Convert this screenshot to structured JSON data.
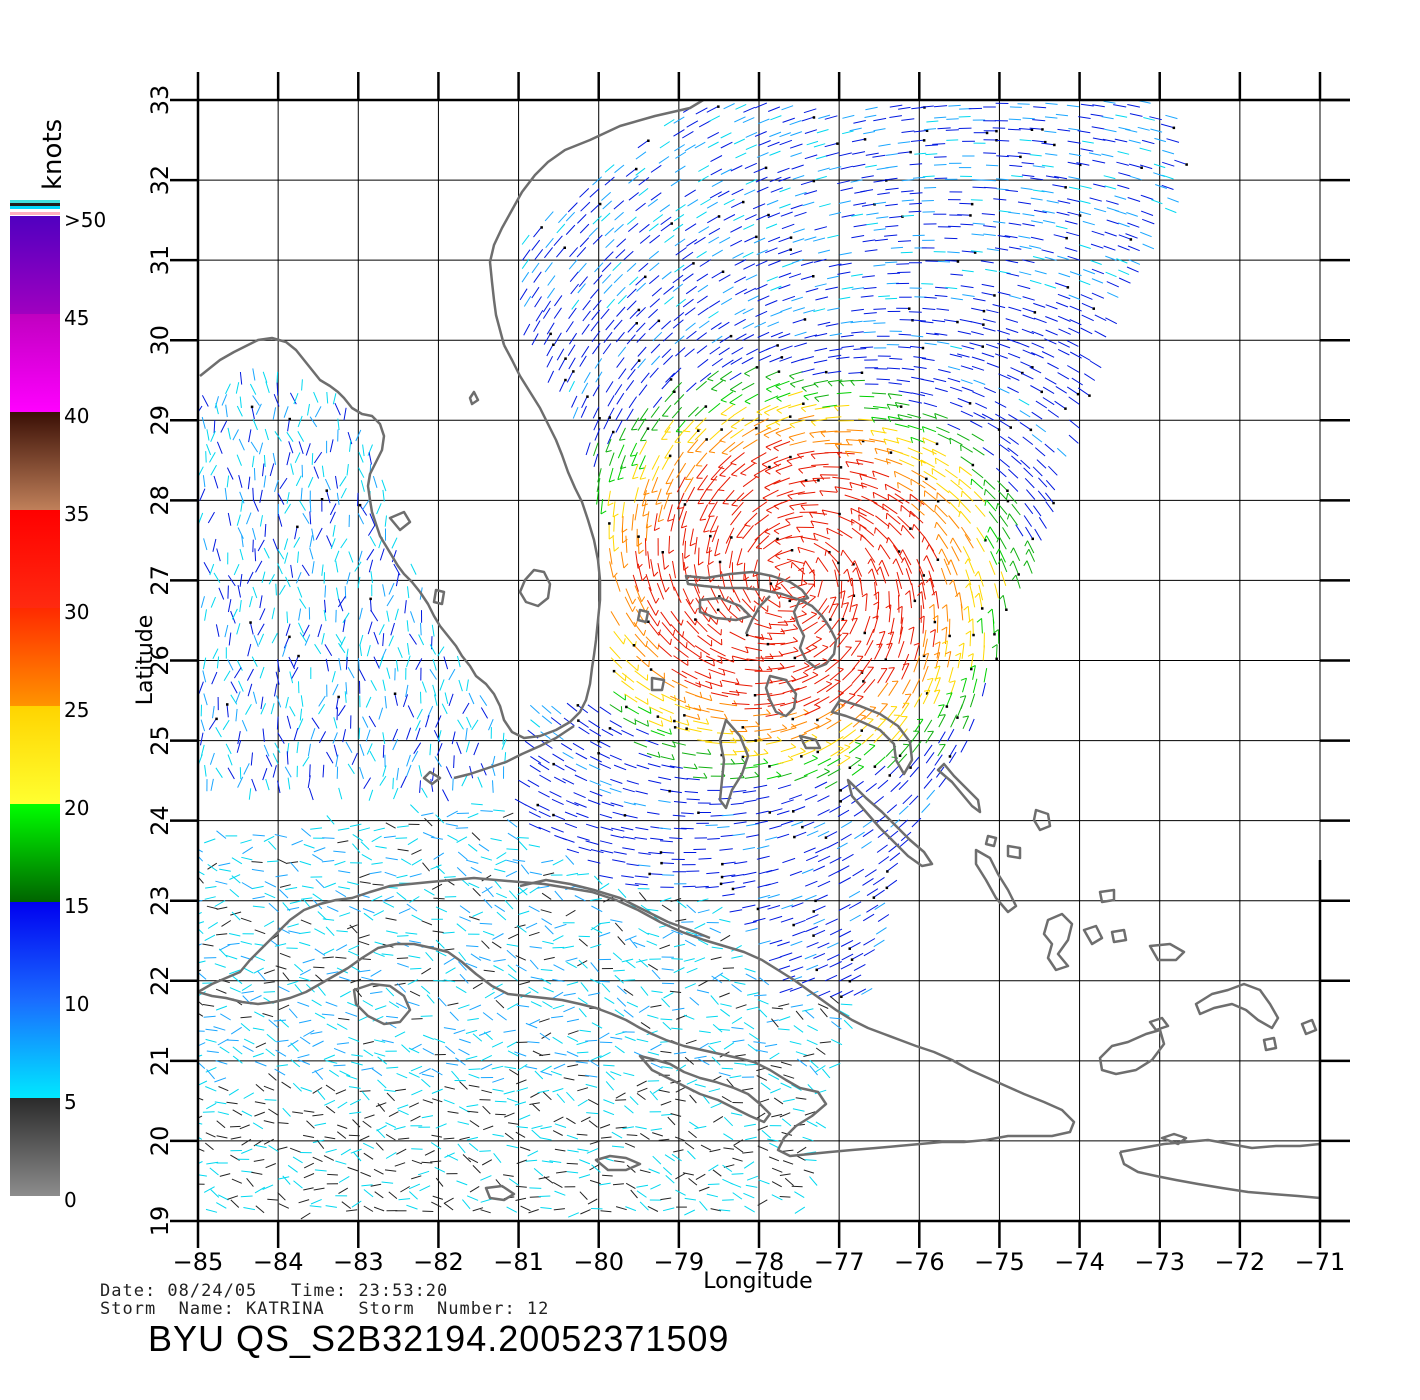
{
  "legend": {
    "unit": "knots",
    "labels": [
      "0",
      "5",
      "10",
      "15",
      "20",
      "25",
      "30",
      "35",
      "40",
      "45",
      ">50"
    ],
    "bands": [
      {
        "from": 0,
        "to": 5,
        "top": "#2a2a2a",
        "bottom": "#8c8c8c"
      },
      {
        "from": 5,
        "to": 10,
        "top": "#1a6cff",
        "bottom": "#00e8ff"
      },
      {
        "from": 10,
        "to": 15,
        "top": "#0000f0",
        "bottom": "#1a6cff"
      },
      {
        "from": 15,
        "to": 20,
        "top": "#00ff00",
        "bottom": "#006400"
      },
      {
        "from": 20,
        "to": 25,
        "top": "#ffd400",
        "bottom": "#ffff30"
      },
      {
        "from": 25,
        "to": 30,
        "top": "#ff2a00",
        "bottom": "#ff9400"
      },
      {
        "from": 30,
        "to": 35,
        "top": "#ff0000",
        "bottom": "#ff2a10"
      },
      {
        "from": 35,
        "to": 40,
        "top": "#3a0f05",
        "bottom": "#c0805a"
      },
      {
        "from": 40,
        "to": 45,
        "top": "#c000c0",
        "bottom": "#ff00ff"
      },
      {
        "from": 45,
        "to": 50,
        "top": "#5000c0",
        "bottom": "#a000c0"
      }
    ]
  },
  "axes": {
    "xlabel": "Longitude",
    "ylabel": "Latitude",
    "xlim": [
      -85,
      -71
    ],
    "ylim": [
      19,
      33
    ],
    "xticks": [
      "-85",
      "-84",
      "-83",
      "-82",
      "-81",
      "-80",
      "-79",
      "-78",
      "-77",
      "-76",
      "-75",
      "-74",
      "-73",
      "-72",
      "-71"
    ],
    "yticks": [
      "19",
      "20",
      "21",
      "22",
      "23",
      "24",
      "25",
      "26",
      "27",
      "28",
      "29",
      "30",
      "31",
      "32",
      "33"
    ]
  },
  "storm_center": {
    "lon": -77.6,
    "lat": 27.0,
    "max_wind_kt": 32
  },
  "info": {
    "date_line": "Date: 08/24/05   Time: 23:53:20",
    "storm_line": "Storm  Name: KATRINA   Storm  Number: 12",
    "title": "BYU  QS_S2B32194.20052371509"
  }
}
